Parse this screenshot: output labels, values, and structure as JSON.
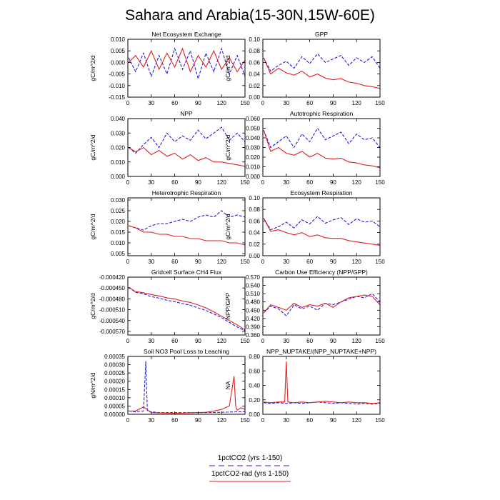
{
  "figure": {
    "title": "Sahara and Arabia(15-30N,15W-60E)"
  },
  "legend": [
    {
      "label": "1pctCO2 (yrs 1-150)",
      "color": "#1f1fe0",
      "style": "dashed"
    },
    {
      "label": "1pctCO2-rad (yrs 1-150)",
      "color": "#e01f1f",
      "style": "solid"
    }
  ],
  "chart_data": [
    {
      "type": "line",
      "title": "Net Ecosystem Exchange",
      "ylabel": "gC/m^2/d",
      "xlim": [
        0,
        150
      ],
      "ylim": [
        -0.015,
        0.01
      ],
      "xticks": [
        0,
        30,
        60,
        90,
        120,
        150
      ],
      "yticks": [
        "-0.015",
        "-0.010",
        "-0.005",
        "0.000",
        "0.005",
        "0.010"
      ],
      "series": [
        {
          "name": "1pctCO2 (yrs 1-150)",
          "x": [
            1,
            10,
            20,
            30,
            40,
            50,
            60,
            70,
            80,
            90,
            100,
            110,
            120,
            130,
            140,
            150
          ],
          "values": [
            0.002,
            -0.004,
            0.004,
            -0.006,
            0.003,
            -0.005,
            0.006,
            -0.003,
            0.005,
            -0.007,
            0.004,
            -0.004,
            0.006,
            -0.005,
            0.003,
            -0.006
          ]
        },
        {
          "name": "1pctCO2-rad (yrs 1-150)",
          "x": [
            1,
            10,
            20,
            30,
            40,
            50,
            60,
            70,
            80,
            90,
            100,
            110,
            120,
            130,
            140,
            150
          ],
          "values": [
            0.0,
            0.003,
            -0.002,
            0.005,
            -0.003,
            0.004,
            -0.002,
            0.006,
            -0.004,
            0.003,
            -0.002,
            0.005,
            -0.003,
            0.002,
            -0.004,
            0.001
          ]
        }
      ]
    },
    {
      "type": "line",
      "title": "GPP",
      "ylabel": "gC/m^2/d",
      "xlim": [
        0,
        150
      ],
      "ylim": [
        0.0,
        0.1
      ],
      "xticks": [
        0,
        30,
        60,
        90,
        120,
        150
      ],
      "yticks": [
        "0.00",
        "0.02",
        "0.04",
        "0.06",
        "0.08",
        "0.10"
      ],
      "series": [
        {
          "name": "1pctCO2 (yrs 1-150)",
          "x": [
            1,
            10,
            20,
            30,
            40,
            50,
            60,
            70,
            80,
            90,
            100,
            110,
            120,
            130,
            140,
            150
          ],
          "values": [
            0.068,
            0.045,
            0.055,
            0.062,
            0.05,
            0.07,
            0.058,
            0.075,
            0.06,
            0.066,
            0.072,
            0.055,
            0.068,
            0.06,
            0.07,
            0.05
          ]
        },
        {
          "name": "1pctCO2-rad (yrs 1-150)",
          "x": [
            1,
            10,
            20,
            30,
            40,
            50,
            60,
            70,
            80,
            90,
            100,
            110,
            120,
            130,
            140,
            150
          ],
          "values": [
            0.068,
            0.04,
            0.05,
            0.042,
            0.038,
            0.045,
            0.035,
            0.04,
            0.033,
            0.03,
            0.032,
            0.026,
            0.024,
            0.02,
            0.018,
            0.015
          ]
        }
      ]
    },
    {
      "type": "line",
      "title": "NPP",
      "ylabel": "gC/m^2/d",
      "xlim": [
        0,
        150
      ],
      "ylim": [
        0.0,
        0.04
      ],
      "xticks": [
        0,
        30,
        60,
        90,
        120,
        150
      ],
      "yticks": [
        "0.000",
        "0.010",
        "0.020",
        "0.030",
        "0.040"
      ],
      "series": [
        {
          "name": "1pctCO2 (yrs 1-150)",
          "x": [
            1,
            10,
            20,
            30,
            40,
            50,
            60,
            70,
            80,
            90,
            100,
            110,
            120,
            130,
            140,
            150
          ],
          "values": [
            0.02,
            0.016,
            0.022,
            0.027,
            0.02,
            0.03,
            0.024,
            0.028,
            0.025,
            0.032,
            0.026,
            0.03,
            0.034,
            0.025,
            0.03,
            0.024
          ]
        },
        {
          "name": "1pctCO2-rad (yrs 1-150)",
          "x": [
            1,
            10,
            20,
            30,
            40,
            50,
            60,
            70,
            80,
            90,
            100,
            110,
            120,
            130,
            140,
            150
          ],
          "values": [
            0.02,
            0.017,
            0.02,
            0.015,
            0.018,
            0.014,
            0.016,
            0.012,
            0.015,
            0.011,
            0.013,
            0.01,
            0.01,
            0.009,
            0.008,
            0.007
          ]
        }
      ]
    },
    {
      "type": "line",
      "title": "Autotrophic Respiration",
      "ylabel": "gC/m^2/d",
      "xlim": [
        0,
        150
      ],
      "ylim": [
        0.0,
        0.06
      ],
      "xticks": [
        0,
        30,
        60,
        90,
        120,
        150
      ],
      "yticks": [
        "0.000",
        "0.010",
        "0.020",
        "0.030",
        "0.040",
        "0.050",
        "0.060"
      ],
      "series": [
        {
          "name": "1pctCO2 (yrs 1-150)",
          "x": [
            1,
            10,
            20,
            30,
            40,
            50,
            60,
            70,
            80,
            90,
            100,
            110,
            120,
            130,
            140,
            150
          ],
          "values": [
            0.048,
            0.03,
            0.036,
            0.042,
            0.03,
            0.044,
            0.036,
            0.05,
            0.038,
            0.042,
            0.046,
            0.034,
            0.044,
            0.038,
            0.04,
            0.03
          ]
        },
        {
          "name": "1pctCO2-rad (yrs 1-150)",
          "x": [
            1,
            10,
            20,
            30,
            40,
            50,
            60,
            70,
            80,
            90,
            100,
            110,
            120,
            130,
            140,
            150
          ],
          "values": [
            0.048,
            0.026,
            0.03,
            0.024,
            0.022,
            0.026,
            0.02,
            0.024,
            0.019,
            0.018,
            0.019,
            0.015,
            0.014,
            0.012,
            0.011,
            0.009
          ]
        }
      ]
    },
    {
      "type": "line",
      "title": "Heterotrophic Respiration",
      "ylabel": "gC/m^2/d",
      "xlim": [
        0,
        150
      ],
      "ylim": [
        0.004,
        0.031
      ],
      "xticks": [
        0,
        30,
        60,
        90,
        120,
        150
      ],
      "yticks": [
        "0.005",
        "0.010",
        "0.015",
        "0.020",
        "0.025",
        "0.030"
      ],
      "series": [
        {
          "name": "1pctCO2 (yrs 1-150)",
          "x": [
            1,
            10,
            20,
            30,
            40,
            50,
            60,
            70,
            80,
            90,
            100,
            110,
            120,
            130,
            140,
            150
          ],
          "values": [
            0.018,
            0.017,
            0.016,
            0.018,
            0.019,
            0.019,
            0.02,
            0.021,
            0.02,
            0.022,
            0.023,
            0.022,
            0.025,
            0.022,
            0.023,
            0.022
          ]
        },
        {
          "name": "1pctCO2-rad (yrs 1-150)",
          "x": [
            1,
            10,
            20,
            30,
            40,
            50,
            60,
            70,
            80,
            90,
            100,
            110,
            120,
            130,
            140,
            150
          ],
          "values": [
            0.018,
            0.017,
            0.015,
            0.015,
            0.014,
            0.014,
            0.013,
            0.013,
            0.012,
            0.012,
            0.011,
            0.011,
            0.011,
            0.01,
            0.01,
            0.009
          ]
        }
      ]
    },
    {
      "type": "line",
      "title": "Ecosystem Respiration",
      "ylabel": "gC/m^2/d",
      "xlim": [
        0,
        150
      ],
      "ylim": [
        0.0,
        0.1
      ],
      "xticks": [
        0,
        30,
        60,
        90,
        120,
        150
      ],
      "yticks": [
        "0.00",
        "0.02",
        "0.04",
        "0.06",
        "0.08",
        "0.10"
      ],
      "series": [
        {
          "name": "1pctCO2 (yrs 1-150)",
          "x": [
            1,
            10,
            20,
            30,
            40,
            50,
            60,
            70,
            80,
            90,
            100,
            110,
            120,
            130,
            140,
            150
          ],
          "values": [
            0.065,
            0.045,
            0.05,
            0.058,
            0.048,
            0.062,
            0.055,
            0.068,
            0.056,
            0.062,
            0.066,
            0.054,
            0.064,
            0.058,
            0.06,
            0.05
          ]
        },
        {
          "name": "1pctCO2-rad (yrs 1-150)",
          "x": [
            1,
            10,
            20,
            30,
            40,
            50,
            60,
            70,
            80,
            90,
            100,
            110,
            120,
            130,
            140,
            150
          ],
          "values": [
            0.065,
            0.042,
            0.045,
            0.04,
            0.036,
            0.04,
            0.033,
            0.036,
            0.031,
            0.03,
            0.03,
            0.026,
            0.024,
            0.022,
            0.02,
            0.018
          ]
        }
      ]
    },
    {
      "type": "line",
      "title": "Gridcell Surface CH4 Flux",
      "ylabel": "gC/m^2/d",
      "xlim": [
        0,
        150
      ],
      "ylim": [
        -0.00058,
        -0.00042
      ],
      "xticks": [
        0,
        30,
        60,
        90,
        120,
        150
      ],
      "yticks": [
        "-0.000420",
        "-0.000450",
        "-0.000480",
        "-0.000510",
        "-0.000540",
        "-0.000570"
      ],
      "series": [
        {
          "name": "1pctCO2 (yrs 1-150)",
          "x": [
            1,
            10,
            20,
            30,
            40,
            50,
            60,
            70,
            80,
            90,
            100,
            110,
            120,
            130,
            140,
            150
          ],
          "values": [
            -0.000448,
            -0.000462,
            -0.000466,
            -0.000474,
            -0.000478,
            -0.000484,
            -0.000488,
            -0.000493,
            -0.000498,
            -0.000505,
            -0.000512,
            -0.000522,
            -0.000532,
            -0.000545,
            -0.000558,
            -0.000568
          ]
        },
        {
          "name": "1pctCO2-rad (yrs 1-150)",
          "x": [
            1,
            10,
            20,
            30,
            40,
            50,
            60,
            70,
            80,
            90,
            100,
            110,
            120,
            130,
            140,
            150
          ],
          "values": [
            -0.000448,
            -0.00046,
            -0.000463,
            -0.000468,
            -0.000472,
            -0.000477,
            -0.00048,
            -0.000486,
            -0.00049,
            -0.000497,
            -0.000505,
            -0.000516,
            -0.000528,
            -0.00054,
            -0.000552,
            -0.000566
          ]
        }
      ]
    },
    {
      "type": "line",
      "title": "Carbon Use Efficiency (NPP/GPP)",
      "ylabel": "NPP/GPP",
      "xlim": [
        0,
        150
      ],
      "ylim": [
        0.36,
        0.57
      ],
      "xticks": [
        0,
        30,
        60,
        90,
        120,
        150
      ],
      "yticks": [
        "0.360",
        "0.390",
        "0.420",
        "0.450",
        "0.480",
        "0.510",
        "0.540",
        "0.570"
      ],
      "series": [
        {
          "name": "1pctCO2 (yrs 1-150)",
          "x": [
            1,
            10,
            20,
            30,
            40,
            50,
            60,
            70,
            80,
            90,
            100,
            110,
            120,
            130,
            140,
            150
          ],
          "values": [
            0.44,
            0.465,
            0.455,
            0.43,
            0.47,
            0.455,
            0.465,
            0.45,
            0.475,
            0.47,
            0.48,
            0.49,
            0.5,
            0.495,
            0.51,
            0.48
          ]
        },
        {
          "name": "1pctCO2-rad (yrs 1-150)",
          "x": [
            1,
            10,
            20,
            30,
            40,
            50,
            60,
            70,
            80,
            90,
            100,
            110,
            120,
            130,
            140,
            150
          ],
          "values": [
            0.44,
            0.47,
            0.46,
            0.45,
            0.475,
            0.46,
            0.47,
            0.465,
            0.475,
            0.46,
            0.48,
            0.495,
            0.5,
            0.505,
            0.5,
            0.47
          ]
        }
      ]
    },
    {
      "type": "line",
      "title": "Soil NO3 Pool Loss to Leaching",
      "ylabel": "gN/m^2/d",
      "xlim": [
        0,
        150
      ],
      "ylim": [
        0.0,
        0.00035
      ],
      "xticks": [
        0,
        30,
        60,
        90,
        120,
        150
      ],
      "yticks": [
        "0.00000",
        "0.00005",
        "0.00010",
        "0.00015",
        "0.00020",
        "0.00025",
        "0.00030",
        "0.00035"
      ],
      "series": [
        {
          "name": "1pctCO2 (yrs 1-150)",
          "x": [
            1,
            10,
            20,
            23,
            25,
            30,
            40,
            60,
            80,
            100,
            120,
            140,
            150
          ],
          "values": [
            2e-05,
            1.5e-05,
            2e-05,
            0.00032,
            2e-05,
            1.5e-05,
            1e-05,
            1e-05,
            1e-05,
            1e-05,
            1.2e-05,
            1.5e-05,
            1.5e-05
          ]
        },
        {
          "name": "1pctCO2-rad (yrs 1-150)",
          "x": [
            1,
            10,
            20,
            30,
            40,
            60,
            80,
            100,
            110,
            120,
            130,
            136,
            138,
            140,
            145,
            150
          ],
          "values": [
            2e-05,
            2e-05,
            4.5e-05,
            1e-05,
            8e-06,
            6e-06,
            8e-06,
            1.2e-05,
            2e-05,
            3e-05,
            5e-05,
            0.00023,
            5e-05,
            2.5e-05,
            4e-05,
            3e-05
          ]
        }
      ]
    },
    {
      "type": "line",
      "title": "NPP_NUPTAKE/(NPP_NUPTAKE+NPP)",
      "ylabel": "NA",
      "xlim": [
        0,
        150
      ],
      "ylim": [
        0.0,
        0.8
      ],
      "xticks": [
        0,
        30,
        60,
        90,
        120,
        150
      ],
      "yticks": [
        "0.00",
        "0.20",
        "0.40",
        "0.60",
        "0.80"
      ],
      "series": [
        {
          "name": "1pctCO2 (yrs 1-150)",
          "x": [
            1,
            10,
            20,
            30,
            40,
            50,
            60,
            70,
            80,
            90,
            100,
            110,
            120,
            130,
            140,
            150
          ],
          "values": [
            0.16,
            0.15,
            0.16,
            0.15,
            0.16,
            0.15,
            0.16,
            0.17,
            0.16,
            0.15,
            0.16,
            0.15,
            0.14,
            0.15,
            0.14,
            0.15
          ]
        },
        {
          "name": "1pctCO2-rad (yrs 1-150)",
          "x": [
            1,
            10,
            20,
            28,
            30,
            32,
            40,
            50,
            60,
            70,
            80,
            90,
            100,
            110,
            120,
            130,
            140,
            150
          ],
          "values": [
            0.17,
            0.16,
            0.17,
            0.17,
            0.73,
            0.17,
            0.16,
            0.17,
            0.16,
            0.17,
            0.18,
            0.17,
            0.16,
            0.17,
            0.16,
            0.16,
            0.15,
            0.16
          ]
        }
      ]
    }
  ]
}
